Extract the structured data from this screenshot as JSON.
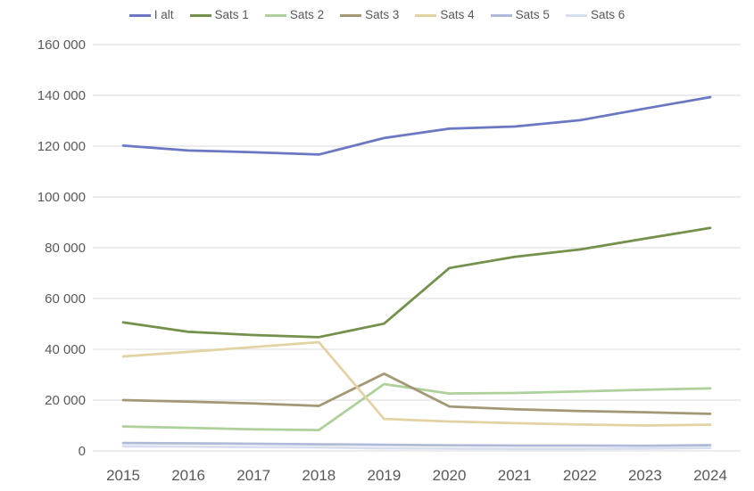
{
  "chart_data": {
    "type": "line",
    "title": "",
    "xlabel": "",
    "ylabel": "",
    "x": [
      2015,
      2016,
      2017,
      2018,
      2019,
      2020,
      2021,
      2022,
      2023,
      2024
    ],
    "series": [
      {
        "name": "I alt",
        "color": "#6a78c3",
        "values": [
          120200,
          118300,
          117600,
          116700,
          123200,
          126900,
          127700,
          130200,
          134800,
          139300
        ]
      },
      {
        "name": "Sats 1",
        "color": "#74914c",
        "values": [
          50600,
          46900,
          45600,
          44800,
          50100,
          72000,
          76400,
          79300,
          83600,
          87800
        ]
      },
      {
        "name": "Sats 2",
        "color": "#aed09b",
        "values": [
          9600,
          9100,
          8500,
          8200,
          26300,
          22600,
          22800,
          23400,
          24100,
          24600
        ]
      },
      {
        "name": "Sats 3",
        "color": "#a29876",
        "values": [
          20000,
          19400,
          18700,
          17700,
          30400,
          17500,
          16400,
          15700,
          15200,
          14600
        ]
      },
      {
        "name": "Sats 4",
        "color": "#e2d2a4",
        "values": [
          37200,
          39000,
          40900,
          42800,
          12600,
          11600,
          10900,
          10400,
          10000,
          10300
        ]
      },
      {
        "name": "Sats 5",
        "color": "#aebad8",
        "values": [
          3100,
          3000,
          2800,
          2600,
          2400,
          2200,
          2100,
          2100,
          2000,
          2300
        ]
      },
      {
        "name": "Sats 6",
        "color": "#d7deee",
        "values": [
          1800,
          1700,
          1500,
          1400,
          1000,
          900,
          800,
          800,
          900,
          1200
        ]
      }
    ],
    "ylim": [
      0,
      160000
    ],
    "ytick_step": 20000,
    "ytick_labels": [
      "0",
      "20 000",
      "40 000",
      "60 000",
      "80 000",
      "100 000",
      "120 000",
      "140 000",
      "160 000"
    ],
    "xtick_labels": [
      "2015",
      "2016",
      "2017",
      "2018",
      "2019",
      "2020",
      "2021",
      "2022",
      "2023",
      "2024"
    ],
    "grid": true,
    "legend_position": "top"
  }
}
